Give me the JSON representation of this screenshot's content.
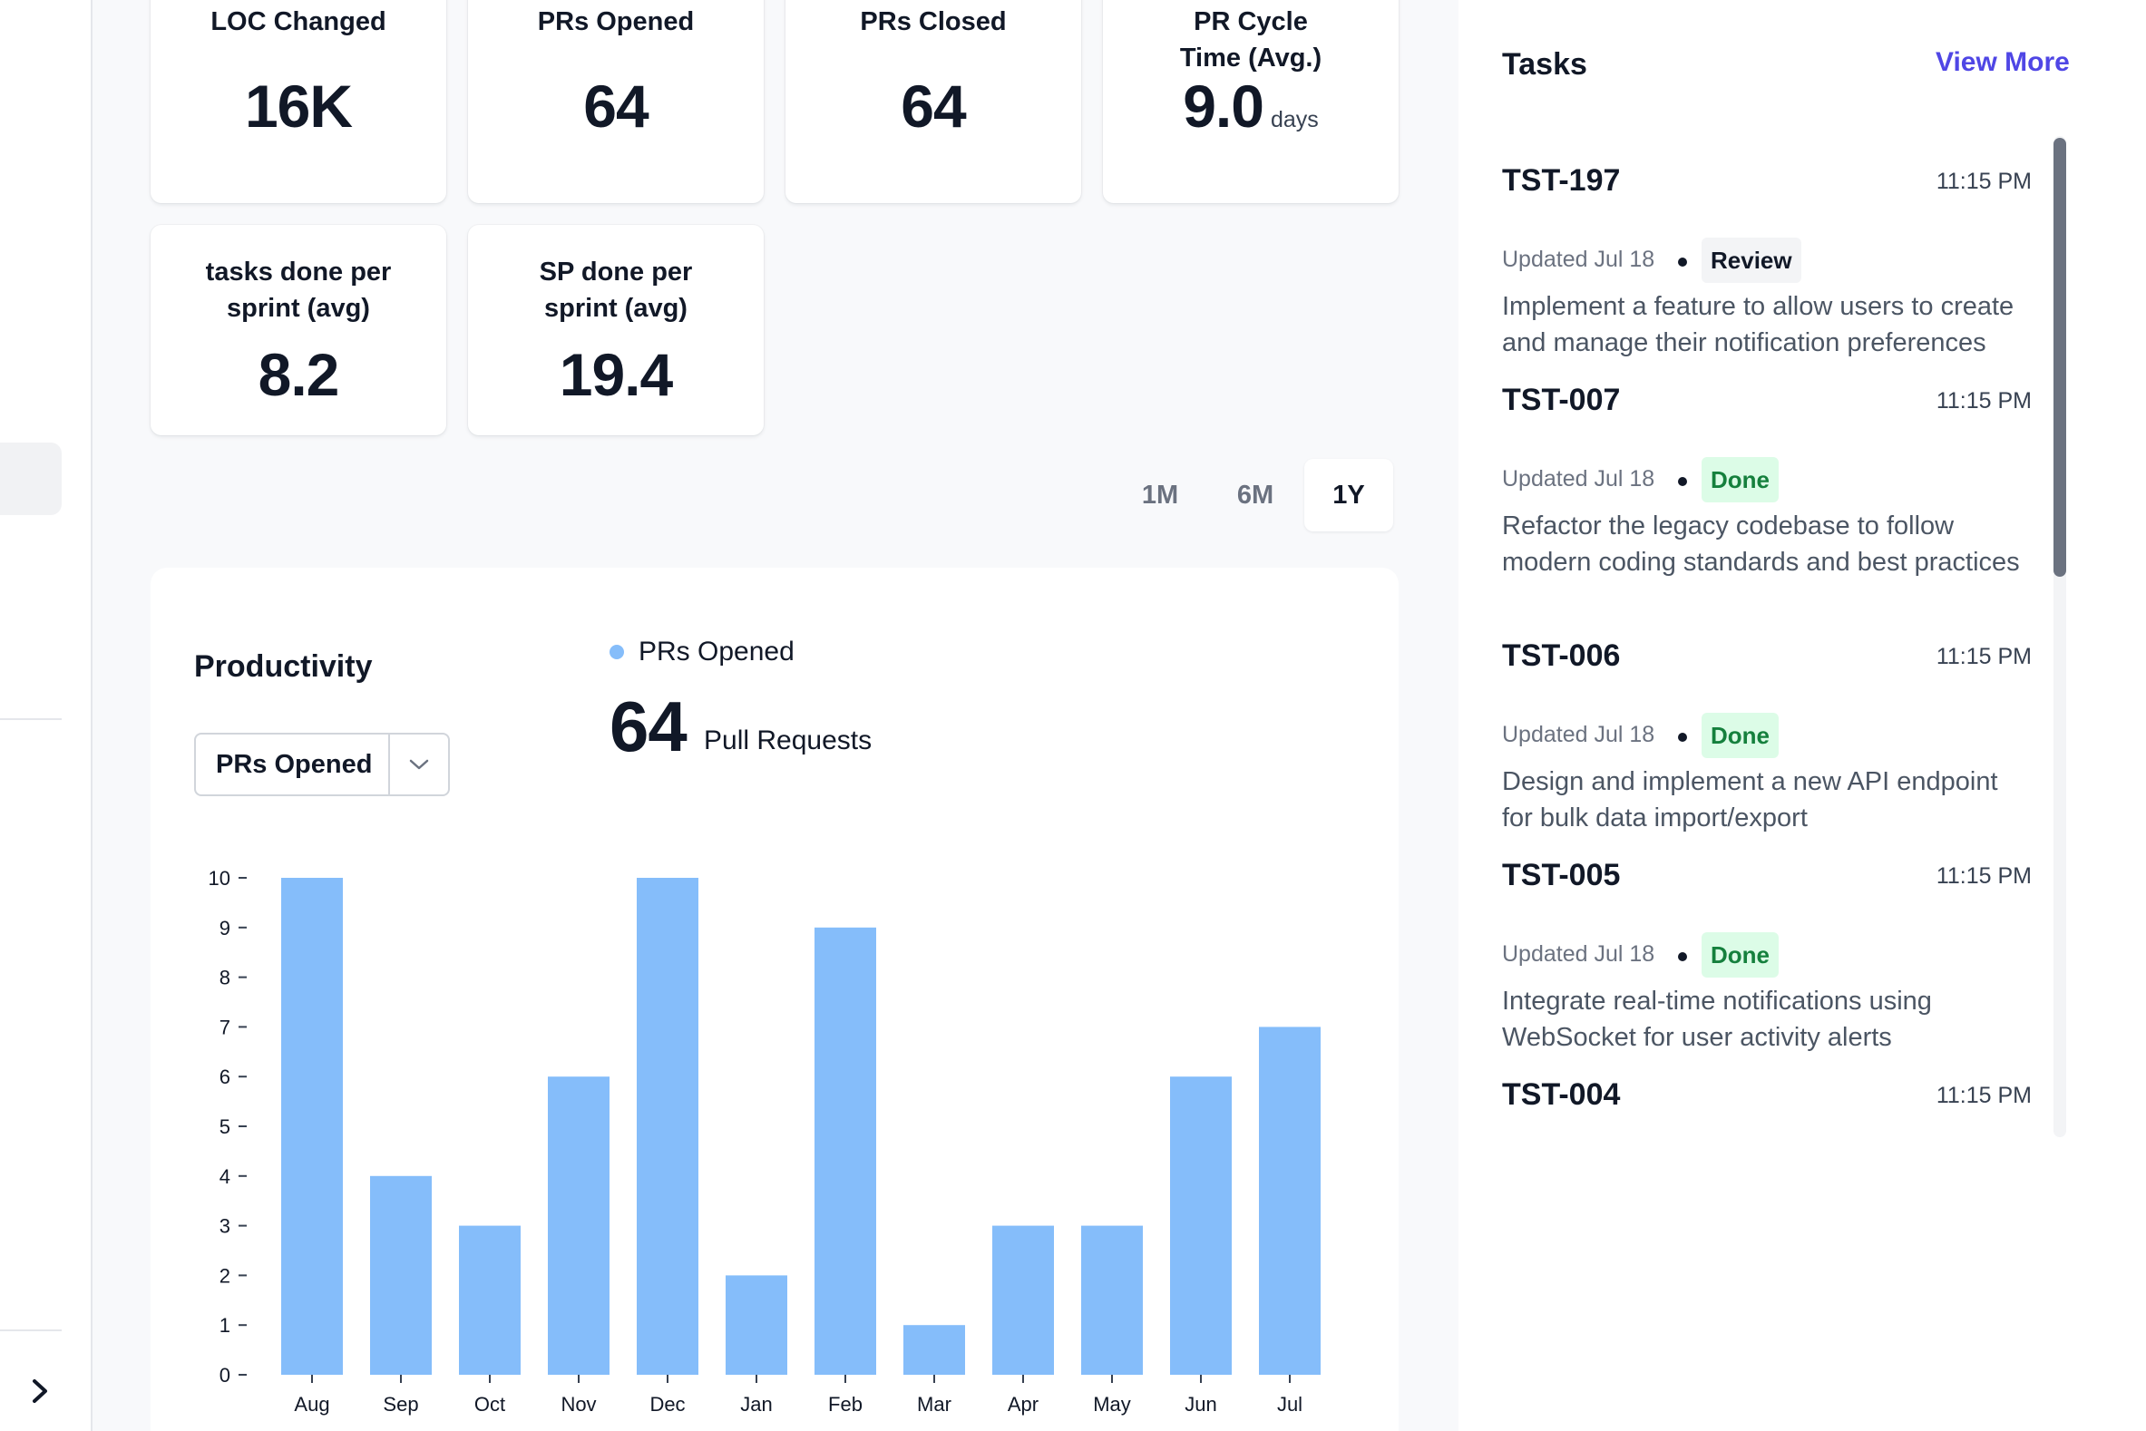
{
  "kpis": [
    {
      "label": "LOC Changed",
      "value": "16K",
      "unit": ""
    },
    {
      "label": "PRs Opened",
      "value": "64",
      "unit": ""
    },
    {
      "label": "PRs Closed",
      "value": "64",
      "unit": ""
    },
    {
      "label": "PR Cycle Time (Avg.)",
      "value": "9.0",
      "unit": "days"
    },
    {
      "label": "tasks done per sprint (avg)",
      "value": "8.2",
      "unit": ""
    },
    {
      "label": "SP done per sprint (avg)",
      "value": "19.4",
      "unit": ""
    }
  ],
  "range": {
    "options": [
      "1M",
      "6M",
      "1Y"
    ],
    "selected": "1Y"
  },
  "productivity": {
    "title": "Productivity",
    "select_value": "PRs Opened",
    "legend": "PRs Opened",
    "total": "64",
    "total_unit": "Pull Requests"
  },
  "chart_data": {
    "type": "bar",
    "categories": [
      "Aug",
      "Sep",
      "Oct",
      "Nov",
      "Dec",
      "Jan",
      "Feb",
      "Mar",
      "Apr",
      "May",
      "Jun",
      "Jul"
    ],
    "series": [
      {
        "name": "PRs Opened",
        "values": [
          10,
          4,
          3,
          6,
          10,
          2,
          9,
          1,
          3,
          3,
          6,
          7
        ]
      }
    ],
    "ylim": [
      0,
      10
    ],
    "yticks": [
      0,
      1,
      2,
      3,
      4,
      5,
      6,
      7,
      8,
      9,
      10
    ],
    "color": "#85bdfa",
    "grid": false
  },
  "tasks": {
    "title": "Tasks",
    "view_more": "View More",
    "items": [
      {
        "id": "TST-197",
        "time": "11:15 PM",
        "updated": "Updated Jul 18",
        "status": "Review",
        "description": "Implement a feature to allow users to create and manage their notification preferences"
      },
      {
        "id": "TST-007",
        "time": "11:15 PM",
        "updated": "Updated Jul 18",
        "status": "Done",
        "description": "Refactor the legacy codebase to follow modern coding standards and best practices"
      },
      {
        "id": "TST-006",
        "time": "11:15 PM",
        "updated": "Updated Jul 18",
        "status": "Done",
        "description": "Design and implement a new API endpoint for bulk data import/export"
      },
      {
        "id": "TST-005",
        "time": "11:15 PM",
        "updated": "Updated Jul 18",
        "status": "Done",
        "description": "Integrate real-time notifications using WebSocket for user activity alerts"
      },
      {
        "id": "TST-004",
        "time": "11:15 PM",
        "updated": "",
        "status": "",
        "description": ""
      }
    ]
  },
  "colors": {
    "accent": "#4f46e5",
    "bar": "#85bdfa",
    "done_bg": "#dcfce7",
    "done_text": "#15803d"
  }
}
